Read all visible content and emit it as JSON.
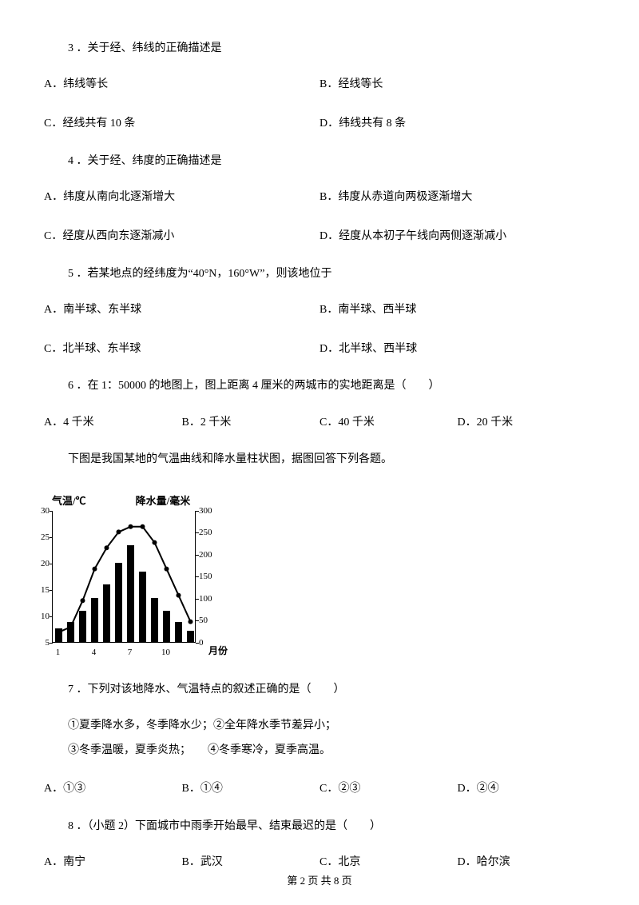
{
  "q3": {
    "stem": "3 ．关于经、纬线的正确描述是",
    "A": "A．纬线等长",
    "B": "B．经线等长",
    "C": "C．经线共有 10 条",
    "D": "D．纬线共有 8 条"
  },
  "q4": {
    "stem": "4 ．关于经、纬度的正确描述是",
    "A": "A．纬度从南向北逐渐增大",
    "B": "B．纬度从赤道向两极逐渐增大",
    "C": "C．经度从西向东逐渐减小",
    "D": "D．经度从本初子午线向两侧逐渐减小"
  },
  "q5": {
    "stem": "5 ．若某地点的经纬度为“40°N，160°W”，则该地位于",
    "A": "A．南半球、东半球",
    "B": "B．南半球、西半球",
    "C": "C．北半球、东半球",
    "D": "D．北半球、西半球"
  },
  "q6": {
    "stem": "6 ．在 1：50000 的地图上，图上距离 4 厘米的两城市的实地距离是（　　）",
    "A": "A．4 千米",
    "B": "B．2 千米",
    "C": "C．40 千米",
    "D": "D．20 千米"
  },
  "chartIntro": "下图是我国某地的气温曲线和降水量柱状图，据图回答下列各题。",
  "chart": {
    "leftAxisLabel": "气温/℃",
    "rightAxisLabel": "降水量/毫米",
    "leftMax": 30,
    "leftMin": 5,
    "leftStep": 5,
    "rightMax": 300,
    "rightMin": 0,
    "rightStep": 50,
    "leftTicks": [
      5,
      10,
      15,
      20,
      25,
      30
    ],
    "rightTicks": [
      0,
      50,
      100,
      150,
      200,
      250,
      300
    ],
    "months": [
      1,
      2,
      3,
      4,
      5,
      6,
      7,
      8,
      9,
      10,
      11,
      12
    ],
    "xLabels": [
      "1",
      "4",
      "7",
      "10"
    ],
    "xLabelPositions": [
      0,
      3,
      6,
      9
    ],
    "xMonthLabel": "月份",
    "temp": [
      7,
      8,
      13,
      19,
      23,
      26,
      27,
      27,
      24,
      19,
      14,
      9
    ],
    "precip": [
      30,
      45,
      70,
      100,
      130,
      180,
      220,
      160,
      100,
      70,
      45,
      25
    ],
    "barColor": "#000000",
    "lineColor": "#000000",
    "markerRadius": 3
  },
  "q7": {
    "stem": "7 ．下列对该地降水、气温特点的叙述正确的是（　　）",
    "s1": "①夏季降水多，冬季降水少；②全年降水季节差异小；",
    "s2": "③冬季温暖，夏季炎热；　　④冬季寒冷，夏季高温。",
    "A": "A．①③",
    "B": "B．①④",
    "C": "C．②③",
    "D": "D．②④"
  },
  "q8": {
    "stem": "8 ．（小题 2）下面城市中雨季开始最早、结束最迟的是（　　）",
    "A": "A．南宁",
    "B": "B．武汉",
    "C": "C．北京",
    "D": "D．哈尔滨"
  },
  "footer": "第 2 页 共 8 页"
}
